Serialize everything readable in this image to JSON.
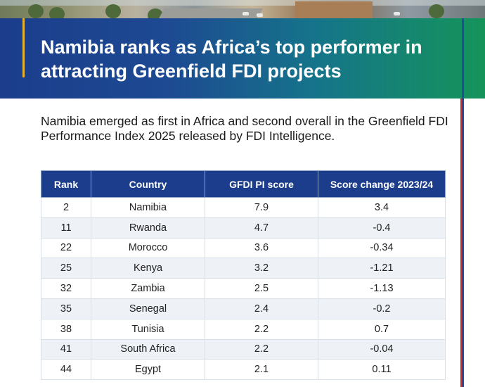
{
  "header": {
    "title": "Namibia ranks as Africa’s top performer in attracting Greenfield FDI projects",
    "accent_color": "#e3b335",
    "gradient_start": "#1b3d8c",
    "gradient_end": "#15945a"
  },
  "intro": {
    "text": "Namibia emerged as first in Africa and second overall in the Greenfield FDI Performance Index 2025 released by FDI Intelligence."
  },
  "table": {
    "columns": [
      "Rank",
      "Country",
      "GFDI PI score",
      "Score change 2023/24"
    ],
    "rows": [
      [
        "2",
        "Namibia",
        "7.9",
        "3.4"
      ],
      [
        "11",
        "Rwanda",
        "4.7",
        "-0.4"
      ],
      [
        "22",
        "Morocco",
        "3.6",
        "-0.34"
      ],
      [
        "25",
        "Kenya",
        "3.2",
        "-1.21"
      ],
      [
        "32",
        "Zambia",
        "2.5",
        "-1.13"
      ],
      [
        "35",
        "Senegal",
        "2.4",
        "-0.2"
      ],
      [
        "38",
        "Tunisia",
        "2.2",
        "0.7"
      ],
      [
        "41",
        "South Africa",
        "2.2",
        "-0.04"
      ],
      [
        "44",
        "Egypt",
        "2.1",
        "0.11"
      ]
    ],
    "header_color": "#1b3d8c"
  }
}
